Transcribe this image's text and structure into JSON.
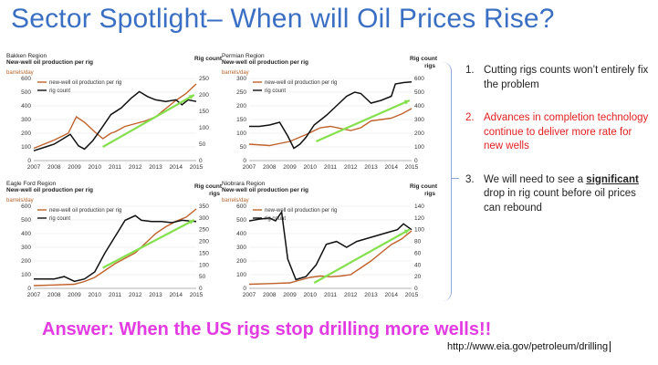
{
  "title": "Sector Spotlight– When will Oil Prices Rise?",
  "answer": "Answer:  When the US rigs stop drilling more wells!!",
  "source": "http://www.eia.gov/petroleum/drilling",
  "points": [
    {
      "num": "1.",
      "text": "Cutting rigs counts won’t entirely fix the problem"
    },
    {
      "num": "2.",
      "text": "Advances in completion technology continue to deliver more rate for new wells"
    },
    {
      "num": "3.",
      "pre": "We will need to see a ",
      "strong": "significant",
      "post": " drop in rig count before oil prices can rebound"
    }
  ],
  "colors": {
    "production": "#c0622b",
    "rigs": "#111111",
    "trend": "#84e04c",
    "title": "#3a6fc4",
    "answer": "#e23be2",
    "highlight": "#e02020"
  },
  "charts": [
    {
      "region": "Bakken Region",
      "subtitle": "New-well oil production per rig",
      "unit_left": "barrels/day",
      "right_title": "Rig count",
      "right_unit": "",
      "legend": [
        "new-well oil production per rig",
        "rig count"
      ],
      "x_ticks": [
        "2007",
        "2008",
        "2009",
        "2010",
        "2011",
        "2012",
        "2013",
        "2014",
        "2015"
      ],
      "left_ticks": [
        "0",
        "100",
        "200",
        "300",
        "400",
        "500",
        "600"
      ],
      "right_ticks": [
        "0",
        "50",
        "100",
        "150",
        "200",
        "250"
      ],
      "left_range": [
        0,
        600
      ],
      "right_range": [
        0,
        250
      ],
      "production": [
        [
          2007,
          90
        ],
        [
          2008,
          150
        ],
        [
          2008.7,
          200
        ],
        [
          2009.1,
          320
        ],
        [
          2009.5,
          280
        ],
        [
          2010,
          210
        ],
        [
          2010.4,
          160
        ],
        [
          2010.8,
          200
        ],
        [
          2011,
          210
        ],
        [
          2011.5,
          250
        ],
        [
          2012,
          270
        ],
        [
          2012.5,
          290
        ],
        [
          2013,
          320
        ],
        [
          2013.5,
          380
        ],
        [
          2014,
          440
        ],
        [
          2014.5,
          490
        ],
        [
          2015,
          560
        ]
      ],
      "rigs": [
        [
          2007,
          30
        ],
        [
          2007.5,
          40
        ],
        [
          2008,
          50
        ],
        [
          2008.4,
          65
        ],
        [
          2008.8,
          80
        ],
        [
          2009.2,
          45
        ],
        [
          2009.5,
          35
        ],
        [
          2009.9,
          60
        ],
        [
          2010.3,
          95
        ],
        [
          2010.8,
          140
        ],
        [
          2011.3,
          160
        ],
        [
          2011.8,
          190
        ],
        [
          2012.2,
          210
        ],
        [
          2012.6,
          195
        ],
        [
          2013,
          185
        ],
        [
          2013.5,
          180
        ],
        [
          2014,
          185
        ],
        [
          2014.3,
          170
        ],
        [
          2014.6,
          185
        ],
        [
          2015,
          180
        ]
      ],
      "trend": [
        [
          2010.4,
          100
        ],
        [
          2014.9,
          480
        ]
      ]
    },
    {
      "region": "Permian Region",
      "subtitle": "New-well oil production per rig",
      "unit_left": "barrels/day",
      "right_title": "Rig count",
      "right_unit": "rigs",
      "legend": [
        "new-well oil production per rig",
        "rig count"
      ],
      "x_ticks": [
        "2007",
        "2008",
        "2009",
        "2010",
        "2011",
        "2012",
        "2013",
        "2014",
        "2015"
      ],
      "left_ticks": [
        "0",
        "50",
        "100",
        "150",
        "200",
        "250",
        "300"
      ],
      "right_ticks": [
        "0",
        "100",
        "200",
        "300",
        "400",
        "500",
        "600"
      ],
      "left_range": [
        0,
        300
      ],
      "right_range": [
        0,
        600
      ],
      "production": [
        [
          2007,
          60
        ],
        [
          2008,
          55
        ],
        [
          2009,
          70
        ],
        [
          2009.8,
          95
        ],
        [
          2010.5,
          120
        ],
        [
          2011,
          125
        ],
        [
          2012,
          110
        ],
        [
          2012.5,
          120
        ],
        [
          2013,
          145
        ],
        [
          2013.5,
          150
        ],
        [
          2014,
          155
        ],
        [
          2014.5,
          170
        ],
        [
          2015,
          190
        ]
      ],
      "rigs": [
        [
          2007,
          250
        ],
        [
          2007.5,
          250
        ],
        [
          2008,
          260
        ],
        [
          2008.5,
          280
        ],
        [
          2008.9,
          180
        ],
        [
          2009.2,
          90
        ],
        [
          2009.5,
          120
        ],
        [
          2009.8,
          170
        ],
        [
          2010.2,
          260
        ],
        [
          2010.8,
          330
        ],
        [
          2011.3,
          400
        ],
        [
          2011.8,
          470
        ],
        [
          2012.2,
          500
        ],
        [
          2012.5,
          490
        ],
        [
          2013,
          420
        ],
        [
          2013.5,
          440
        ],
        [
          2014,
          470
        ],
        [
          2014.2,
          560
        ],
        [
          2014.6,
          570
        ],
        [
          2015,
          575
        ]
      ],
      "trend": [
        [
          2010.3,
          70
        ],
        [
          2014.9,
          220
        ]
      ]
    },
    {
      "region": "Eagle Ford Region",
      "subtitle": "New-well oil production per rig",
      "unit_left": "barrels/day",
      "right_title": "Rig count",
      "right_unit": "rigs",
      "legend": [
        "new-well oil production per rig",
        "rig count"
      ],
      "x_ticks": [
        "2007",
        "2008",
        "2009",
        "2010",
        "2011",
        "2012",
        "2013",
        "2014",
        "2015"
      ],
      "left_ticks": [
        "0",
        "100",
        "200",
        "300",
        "400",
        "500",
        "600"
      ],
      "right_ticks": [
        "0",
        "50",
        "100",
        "150",
        "200",
        "250",
        "300",
        "350"
      ],
      "left_range": [
        0,
        600
      ],
      "right_range": [
        0,
        350
      ],
      "production": [
        [
          2007,
          20
        ],
        [
          2008,
          25
        ],
        [
          2009,
          30
        ],
        [
          2009.5,
          50
        ],
        [
          2010,
          80
        ],
        [
          2010.5,
          130
        ],
        [
          2011,
          180
        ],
        [
          2011.5,
          220
        ],
        [
          2012,
          260
        ],
        [
          2012.5,
          330
        ],
        [
          2013,
          400
        ],
        [
          2013.5,
          450
        ],
        [
          2014,
          490
        ],
        [
          2014.5,
          520
        ],
        [
          2015,
          580
        ]
      ],
      "rigs": [
        [
          2007,
          40
        ],
        [
          2008,
          40
        ],
        [
          2008.5,
          50
        ],
        [
          2009,
          30
        ],
        [
          2009.5,
          40
        ],
        [
          2010,
          70
        ],
        [
          2010.5,
          150
        ],
        [
          2011,
          220
        ],
        [
          2011.5,
          290
        ],
        [
          2012,
          310
        ],
        [
          2012.3,
          290
        ],
        [
          2012.8,
          285
        ],
        [
          2013.3,
          285
        ],
        [
          2013.8,
          280
        ],
        [
          2014.3,
          290
        ],
        [
          2015,
          285
        ]
      ],
      "trend": [
        [
          2010.4,
          150
        ],
        [
          2014.9,
          500
        ]
      ]
    },
    {
      "region": "Niobrara Region",
      "subtitle": "New-well oil production per rig",
      "unit_left": "barrels/day",
      "right_title": "Rig count",
      "right_unit": "rigs",
      "legend": [
        "new-well oil production per rig",
        "rig count"
      ],
      "x_ticks": [
        "2007",
        "2008",
        "2009",
        "2010",
        "2011",
        "2012",
        "2013",
        "2014",
        "2015"
      ],
      "left_ticks": [
        "0",
        "100",
        "200",
        "300",
        "400",
        "500",
        "600"
      ],
      "right_ticks": [
        "0",
        "20",
        "40",
        "60",
        "80",
        "100",
        "120",
        "140"
      ],
      "left_range": [
        0,
        600
      ],
      "right_range": [
        0,
        140
      ],
      "production": [
        [
          2007,
          30
        ],
        [
          2008,
          35
        ],
        [
          2009,
          40
        ],
        [
          2009.5,
          60
        ],
        [
          2010,
          80
        ],
        [
          2010.5,
          90
        ],
        [
          2011,
          85
        ],
        [
          2011.5,
          90
        ],
        [
          2012,
          100
        ],
        [
          2012.5,
          150
        ],
        [
          2013,
          200
        ],
        [
          2013.5,
          260
        ],
        [
          2014,
          320
        ],
        [
          2014.5,
          360
        ],
        [
          2015,
          420
        ]
      ],
      "rigs": [
        [
          2007,
          115
        ],
        [
          2007.5,
          118
        ],
        [
          2008,
          120
        ],
        [
          2008.3,
          115
        ],
        [
          2008.6,
          130
        ],
        [
          2008.9,
          50
        ],
        [
          2009.3,
          15
        ],
        [
          2009.8,
          20
        ],
        [
          2010.3,
          40
        ],
        [
          2010.8,
          75
        ],
        [
          2011.3,
          80
        ],
        [
          2011.8,
          70
        ],
        [
          2012.3,
          80
        ],
        [
          2012.8,
          85
        ],
        [
          2013.3,
          90
        ],
        [
          2013.8,
          95
        ],
        [
          2014.3,
          100
        ],
        [
          2014.6,
          110
        ],
        [
          2015,
          100
        ]
      ],
      "trend": [
        [
          2010.2,
          40
        ],
        [
          2014.9,
          430
        ]
      ]
    }
  ]
}
